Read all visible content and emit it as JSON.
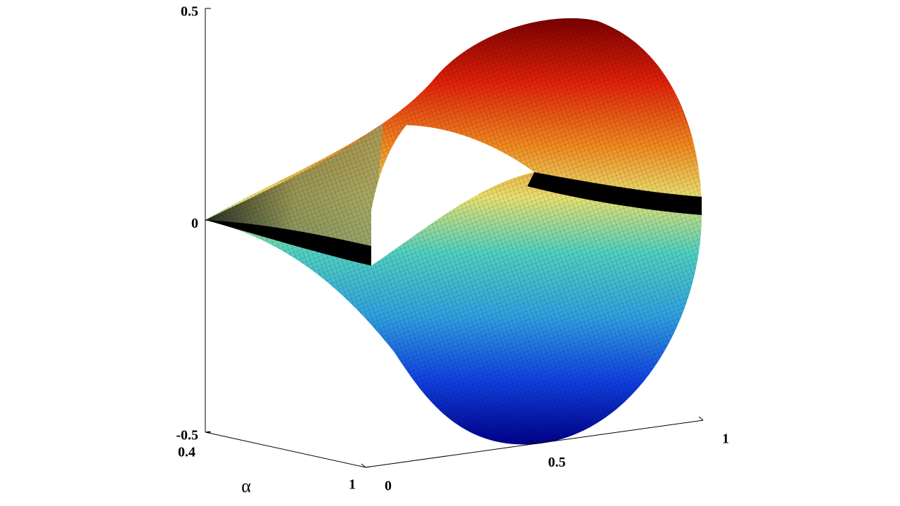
{
  "chart_data": {
    "type": "surface3d",
    "zlim": [
      -0.5,
      0.5
    ],
    "zticks": [
      -0.5,
      0,
      0.5
    ],
    "alim": [
      0.4,
      1
    ],
    "aticks": [
      0.4,
      1
    ],
    "alabel": "α",
    "xlim": [
      0,
      1
    ],
    "xticks": [
      0,
      0.5,
      1
    ]
  }
}
